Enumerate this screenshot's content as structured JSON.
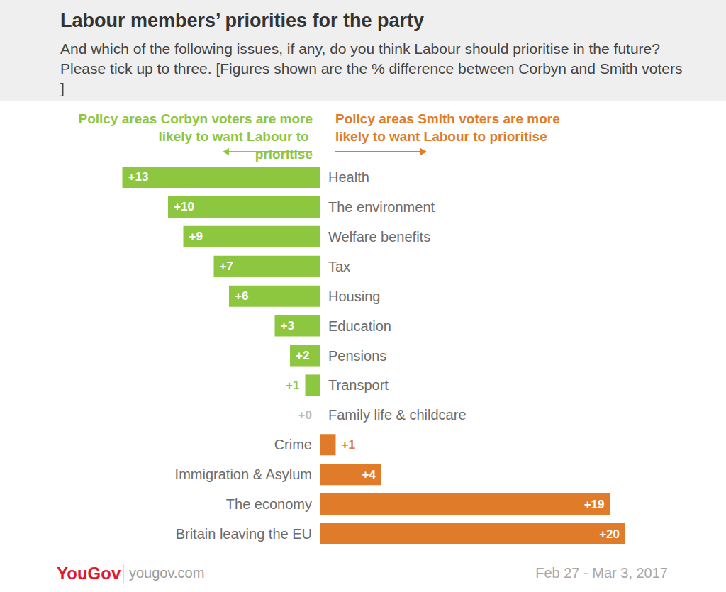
{
  "chart_data": {
    "type": "bar",
    "orientation": "horizontal",
    "title": "Labour members’ priorities for the party",
    "subtitle": "And which of the following issues, if any, do you think Labour should prioritise in the future? Please tick up to three. [Figures shown are the % difference between Corbyn and Smith voters]",
    "categories": [
      "Health",
      "The environment",
      "Welfare benefits",
      "Tax",
      "Housing",
      "Education",
      "Pensions",
      "Transport",
      "Family life & childcare",
      "Crime",
      "Immigration & Asylum",
      "The economy",
      "Britain leaving the EU"
    ],
    "series": [
      {
        "name": "Policy areas Corbyn voters are more likely to want Labour to prioritise",
        "color": "#8dc63f",
        "values": [
          13,
          10,
          9,
          7,
          6,
          3,
          2,
          1,
          0,
          null,
          null,
          null,
          null
        ],
        "value_labels": [
          "+13",
          "+10",
          "+9",
          "+7",
          "+6",
          "+3",
          "+2",
          "+1",
          "+0",
          null,
          null,
          null,
          null
        ]
      },
      {
        "name": "Policy areas Smith voters are more likely to want Labour to prioritise",
        "color": "#e07b2a",
        "values": [
          null,
          null,
          null,
          null,
          null,
          null,
          null,
          null,
          null,
          1,
          4,
          19,
          20
        ],
        "value_labels": [
          null,
          null,
          null,
          null,
          null,
          null,
          null,
          null,
          null,
          "+1",
          "+4",
          "+19",
          "+20"
        ]
      }
    ],
    "xlim": [
      0,
      21
    ],
    "grid": false,
    "tick_labels": "y",
    "data_labels": true,
    "source": "YouGov",
    "source_url": "yougov.com",
    "date": "Feb 27 - Mar 3, 2017"
  }
}
